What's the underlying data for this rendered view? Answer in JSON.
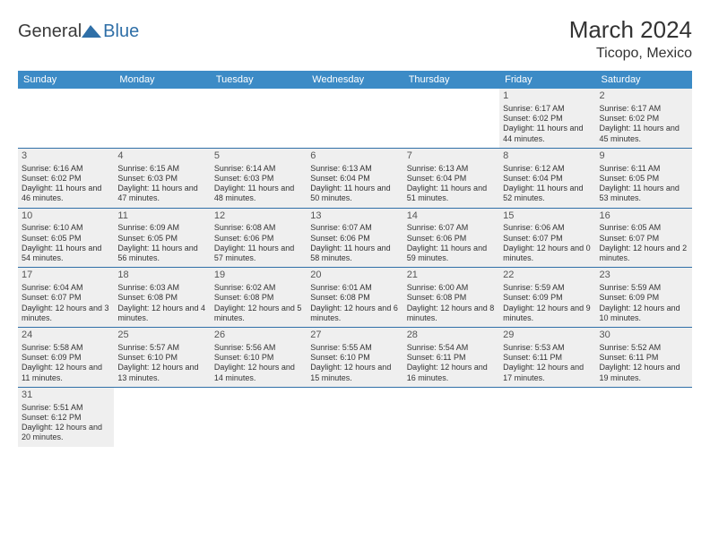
{
  "logo": {
    "part1": "General",
    "part2": "Blue"
  },
  "header": {
    "month_title": "March 2024",
    "location": "Ticopo, Mexico"
  },
  "weekday_labels": [
    "Sunday",
    "Monday",
    "Tuesday",
    "Wednesday",
    "Thursday",
    "Friday",
    "Saturday"
  ],
  "colors": {
    "header_bg": "#3c8bc6",
    "row_border": "#2f6fa7",
    "cell_bg": "#efefef"
  },
  "rows": [
    [
      {
        "blank": true
      },
      {
        "blank": true
      },
      {
        "blank": true
      },
      {
        "blank": true
      },
      {
        "blank": true
      },
      {
        "day": "1",
        "sunrise": "Sunrise: 6:17 AM",
        "sunset": "Sunset: 6:02 PM",
        "daylight": "Daylight: 11 hours and 44 minutes."
      },
      {
        "day": "2",
        "sunrise": "Sunrise: 6:17 AM",
        "sunset": "Sunset: 6:02 PM",
        "daylight": "Daylight: 11 hours and 45 minutes."
      }
    ],
    [
      {
        "day": "3",
        "sunrise": "Sunrise: 6:16 AM",
        "sunset": "Sunset: 6:02 PM",
        "daylight": "Daylight: 11 hours and 46 minutes."
      },
      {
        "day": "4",
        "sunrise": "Sunrise: 6:15 AM",
        "sunset": "Sunset: 6:03 PM",
        "daylight": "Daylight: 11 hours and 47 minutes."
      },
      {
        "day": "5",
        "sunrise": "Sunrise: 6:14 AM",
        "sunset": "Sunset: 6:03 PM",
        "daylight": "Daylight: 11 hours and 48 minutes."
      },
      {
        "day": "6",
        "sunrise": "Sunrise: 6:13 AM",
        "sunset": "Sunset: 6:04 PM",
        "daylight": "Daylight: 11 hours and 50 minutes."
      },
      {
        "day": "7",
        "sunrise": "Sunrise: 6:13 AM",
        "sunset": "Sunset: 6:04 PM",
        "daylight": "Daylight: 11 hours and 51 minutes."
      },
      {
        "day": "8",
        "sunrise": "Sunrise: 6:12 AM",
        "sunset": "Sunset: 6:04 PM",
        "daylight": "Daylight: 11 hours and 52 minutes."
      },
      {
        "day": "9",
        "sunrise": "Sunrise: 6:11 AM",
        "sunset": "Sunset: 6:05 PM",
        "daylight": "Daylight: 11 hours and 53 minutes."
      }
    ],
    [
      {
        "day": "10",
        "sunrise": "Sunrise: 6:10 AM",
        "sunset": "Sunset: 6:05 PM",
        "daylight": "Daylight: 11 hours and 54 minutes."
      },
      {
        "day": "11",
        "sunrise": "Sunrise: 6:09 AM",
        "sunset": "Sunset: 6:05 PM",
        "daylight": "Daylight: 11 hours and 56 minutes."
      },
      {
        "day": "12",
        "sunrise": "Sunrise: 6:08 AM",
        "sunset": "Sunset: 6:06 PM",
        "daylight": "Daylight: 11 hours and 57 minutes."
      },
      {
        "day": "13",
        "sunrise": "Sunrise: 6:07 AM",
        "sunset": "Sunset: 6:06 PM",
        "daylight": "Daylight: 11 hours and 58 minutes."
      },
      {
        "day": "14",
        "sunrise": "Sunrise: 6:07 AM",
        "sunset": "Sunset: 6:06 PM",
        "daylight": "Daylight: 11 hours and 59 minutes."
      },
      {
        "day": "15",
        "sunrise": "Sunrise: 6:06 AM",
        "sunset": "Sunset: 6:07 PM",
        "daylight": "Daylight: 12 hours and 0 minutes."
      },
      {
        "day": "16",
        "sunrise": "Sunrise: 6:05 AM",
        "sunset": "Sunset: 6:07 PM",
        "daylight": "Daylight: 12 hours and 2 minutes."
      }
    ],
    [
      {
        "day": "17",
        "sunrise": "Sunrise: 6:04 AM",
        "sunset": "Sunset: 6:07 PM",
        "daylight": "Daylight: 12 hours and 3 minutes."
      },
      {
        "day": "18",
        "sunrise": "Sunrise: 6:03 AM",
        "sunset": "Sunset: 6:08 PM",
        "daylight": "Daylight: 12 hours and 4 minutes."
      },
      {
        "day": "19",
        "sunrise": "Sunrise: 6:02 AM",
        "sunset": "Sunset: 6:08 PM",
        "daylight": "Daylight: 12 hours and 5 minutes."
      },
      {
        "day": "20",
        "sunrise": "Sunrise: 6:01 AM",
        "sunset": "Sunset: 6:08 PM",
        "daylight": "Daylight: 12 hours and 6 minutes."
      },
      {
        "day": "21",
        "sunrise": "Sunrise: 6:00 AM",
        "sunset": "Sunset: 6:08 PM",
        "daylight": "Daylight: 12 hours and 8 minutes."
      },
      {
        "day": "22",
        "sunrise": "Sunrise: 5:59 AM",
        "sunset": "Sunset: 6:09 PM",
        "daylight": "Daylight: 12 hours and 9 minutes."
      },
      {
        "day": "23",
        "sunrise": "Sunrise: 5:59 AM",
        "sunset": "Sunset: 6:09 PM",
        "daylight": "Daylight: 12 hours and 10 minutes."
      }
    ],
    [
      {
        "day": "24",
        "sunrise": "Sunrise: 5:58 AM",
        "sunset": "Sunset: 6:09 PM",
        "daylight": "Daylight: 12 hours and 11 minutes."
      },
      {
        "day": "25",
        "sunrise": "Sunrise: 5:57 AM",
        "sunset": "Sunset: 6:10 PM",
        "daylight": "Daylight: 12 hours and 13 minutes."
      },
      {
        "day": "26",
        "sunrise": "Sunrise: 5:56 AM",
        "sunset": "Sunset: 6:10 PM",
        "daylight": "Daylight: 12 hours and 14 minutes."
      },
      {
        "day": "27",
        "sunrise": "Sunrise: 5:55 AM",
        "sunset": "Sunset: 6:10 PM",
        "daylight": "Daylight: 12 hours and 15 minutes."
      },
      {
        "day": "28",
        "sunrise": "Sunrise: 5:54 AM",
        "sunset": "Sunset: 6:11 PM",
        "daylight": "Daylight: 12 hours and 16 minutes."
      },
      {
        "day": "29",
        "sunrise": "Sunrise: 5:53 AM",
        "sunset": "Sunset: 6:11 PM",
        "daylight": "Daylight: 12 hours and 17 minutes."
      },
      {
        "day": "30",
        "sunrise": "Sunrise: 5:52 AM",
        "sunset": "Sunset: 6:11 PM",
        "daylight": "Daylight: 12 hours and 19 minutes."
      }
    ],
    [
      {
        "day": "31",
        "sunrise": "Sunrise: 5:51 AM",
        "sunset": "Sunset: 6:12 PM",
        "daylight": "Daylight: 12 hours and 20 minutes."
      },
      {
        "blank": true
      },
      {
        "blank": true
      },
      {
        "blank": true
      },
      {
        "blank": true
      },
      {
        "blank": true
      },
      {
        "blank": true
      }
    ]
  ]
}
